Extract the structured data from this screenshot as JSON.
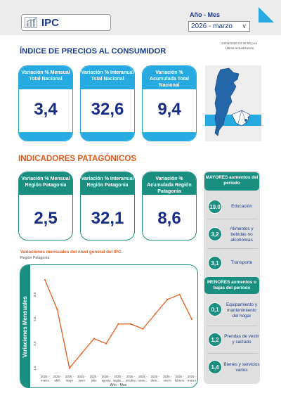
{
  "header": {
    "logo_text": "IPC",
    "period_label": "Año - Mes",
    "period_value": "2026 - marzo",
    "timestamp": "14/04/2026 04:25:56 p.m.",
    "timestamp_label": "Última actualización"
  },
  "national": {
    "title": "ÍNDICE DE PRECIOS AL CONSUMIDOR",
    "cards": [
      {
        "label": "Variación % Mensual Total Nacional",
        "value": "3,4"
      },
      {
        "label": "Variación % Interanual Total Nacional",
        "value": "32,6"
      },
      {
        "label": "Variación % Acumulada Total Nacional",
        "value": "9,4"
      }
    ]
  },
  "patagonia": {
    "title": "INDICADORES PATAGÓNICOS",
    "cards": [
      {
        "label": "Variación % Mensual Región Patagonia",
        "value": "2,5"
      },
      {
        "label": "Variación % Interanual Región Patagonia",
        "value": "32,1"
      },
      {
        "label": "Variación % Acumulada Región Patagonia",
        "value": "8,6"
      }
    ]
  },
  "mayores": {
    "title": "MAYORES aumentos del período",
    "items": [
      {
        "value": "10.0",
        "label": "Educación"
      },
      {
        "value": "3,2",
        "label": "Alimentos y bebidas no alcohólicas"
      },
      {
        "value": "3,1",
        "label": "Transporte"
      }
    ]
  },
  "menores": {
    "title": "MENORES aumentos o bajas del período",
    "items": [
      {
        "value": "0,1",
        "label": "Equipamiento y mantenimiento del hogar"
      },
      {
        "value": "1,2",
        "label": "Prendas de vestir y calzado"
      },
      {
        "value": "1,4",
        "label": "Bienes y servicios varios"
      }
    ]
  },
  "chart": {
    "title": "Variaciones mensuales del nivel general del IPC.",
    "subtitle": "Región Patagonia"
  },
  "colors": {
    "navy": "#1b3a8a",
    "sky": "#27a9e1",
    "teal": "#1a8f80",
    "orange": "#e05a1c"
  },
  "chart_data": {
    "type": "line",
    "title": "",
    "xlabel": "Año - Mes",
    "ylabel": "Variaciones Mensuales",
    "x": [
      "2025 - marzo",
      "2025 - abril",
      "2025 - mayo",
      "2025 - junio",
      "2025 - julio",
      "2025 - agosto",
      "2025 - septie...",
      "2025 - octubre",
      "2025 - novie...",
      "2025 - dicie...",
      "2026 - enero",
      "2026 - febrero",
      "2026 - marzo"
    ],
    "series": [
      {
        "values": [
          3.3,
          2.7,
          1.5,
          1.8,
          2.1,
          2.0,
          2.4,
          2.4,
          2.3,
          2.6,
          2.9,
          3.0,
          2.5
        ]
      }
    ],
    "yticks": [
      "1,5",
      "2,0",
      "2,5",
      "3,0"
    ],
    "ylim": [
      1.45,
      3.4
    ],
    "grid": false,
    "color": "#e8692a"
  }
}
